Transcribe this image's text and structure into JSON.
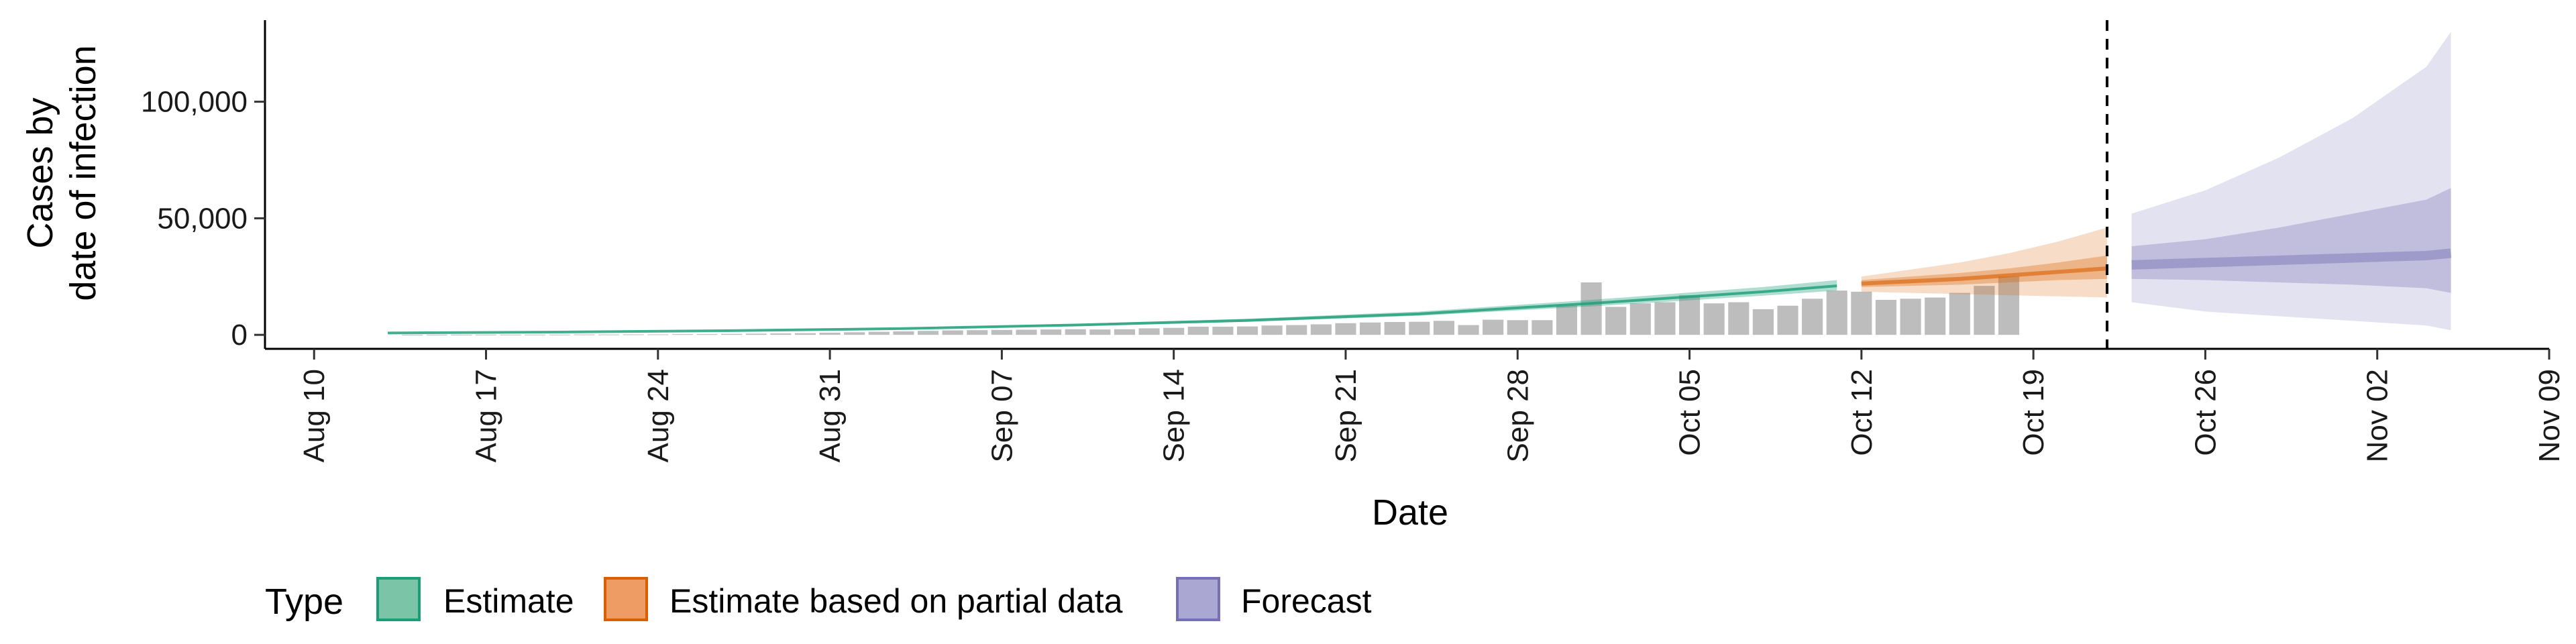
{
  "chart_data": {
    "type": "area",
    "title": "",
    "xlabel": "Date",
    "ylabel_lines": [
      "Cases by",
      "date of infection"
    ],
    "x_ticks": [
      "Aug 10",
      "Aug 17",
      "Aug 24",
      "Aug 31",
      "Sep 07",
      "Sep 14",
      "Sep 21",
      "Sep 28",
      "Oct 05",
      "Oct 12",
      "Oct 19",
      "Oct 26",
      "Nov 02",
      "Nov 09"
    ],
    "y_ticks": [
      "0",
      "50,000",
      "100,000"
    ],
    "y_tick_values": [
      0,
      50000,
      100000
    ],
    "xlim": [
      "2020-08-08",
      "2020-11-09"
    ],
    "ylim": [
      -6000,
      135000
    ],
    "forecast_date": "2020-10-22",
    "legend": {
      "title": "Type",
      "position": "bottom",
      "entries": [
        {
          "name": "Estimate",
          "fill": "#7cc4a8",
          "stroke": "#1b9e77"
        },
        {
          "name": "Estimate based on partial data",
          "fill": "#ee9c63",
          "stroke": "#d95f02"
        },
        {
          "name": "Forecast",
          "fill": "#aaa7d3",
          "stroke": "#7570b3"
        }
      ]
    },
    "colors": {
      "estimate": "#1b9e77",
      "partial": "#d95f02",
      "forecast": "#7570b3",
      "bars": "#bdbdbd"
    },
    "reported_cases": {
      "start_date": "2020-08-14",
      "values": [
        50,
        60,
        60,
        80,
        80,
        100,
        100,
        150,
        150,
        200,
        200,
        300,
        300,
        400,
        500,
        600,
        700,
        900,
        1100,
        1300,
        1500,
        1700,
        1900,
        2000,
        2100,
        2200,
        2300,
        2400,
        2300,
        2400,
        2800,
        3000,
        3500,
        3500,
        3600,
        4000,
        4200,
        4500,
        5000,
        5300,
        5500,
        5600,
        6000,
        4200,
        6500,
        6300,
        6300,
        12500,
        22500,
        12000,
        13500,
        14000,
        17000,
        13500,
        14000,
        11000,
        12500,
        15500,
        19000,
        18500,
        15000,
        15500,
        16000,
        18000,
        21000,
        25000
      ]
    },
    "series": [
      {
        "name": "Estimate",
        "x": [
          "2020-08-13",
          "2020-08-20",
          "2020-08-27",
          "2020-09-03",
          "2020-09-10",
          "2020-09-17",
          "2020-09-24",
          "2020-10-01",
          "2020-10-08",
          "2020-10-11"
        ],
        "median": [
          800,
          1200,
          1800,
          2700,
          4200,
          6200,
          9000,
          13500,
          18500,
          21000
        ],
        "lower": [
          700,
          1050,
          1600,
          2450,
          3800,
          5600,
          8200,
          12200,
          16800,
          19000
        ],
        "upper": [
          900,
          1350,
          2000,
          3000,
          4700,
          6900,
          10000,
          15000,
          20500,
          23500
        ]
      },
      {
        "name": "Estimate based on partial data",
        "x": [
          "2020-10-12",
          "2020-10-14",
          "2020-10-16",
          "2020-10-18",
          "2020-10-20",
          "2020-10-22"
        ],
        "median": [
          22000,
          23000,
          24000,
          25500,
          27000,
          28500
        ],
        "lower": [
          18500,
          18000,
          17500,
          17000,
          16500,
          16000
        ],
        "upper": [
          25000,
          28000,
          31000,
          35000,
          40000,
          46000
        ],
        "lower50": [
          20500,
          21000,
          21500,
          22500,
          23500,
          24000
        ],
        "upper50": [
          23500,
          25000,
          26500,
          28500,
          31000,
          34000
        ]
      },
      {
        "name": "Forecast",
        "x": [
          "2020-10-23",
          "2020-10-26",
          "2020-10-29",
          "2020-11-01",
          "2020-11-04",
          "2020-11-05"
        ],
        "median": [
          30000,
          31000,
          32000,
          33000,
          34000,
          35000
        ],
        "lower": [
          14000,
          10000,
          8000,
          6000,
          4000,
          2000
        ],
        "upper": [
          52000,
          62000,
          76000,
          93000,
          115000,
          130000
        ],
        "lower50": [
          24000,
          23500,
          22500,
          21500,
          20000,
          18000
        ],
        "upper50": [
          38000,
          41000,
          46000,
          52000,
          58000,
          63000
        ]
      }
    ]
  }
}
